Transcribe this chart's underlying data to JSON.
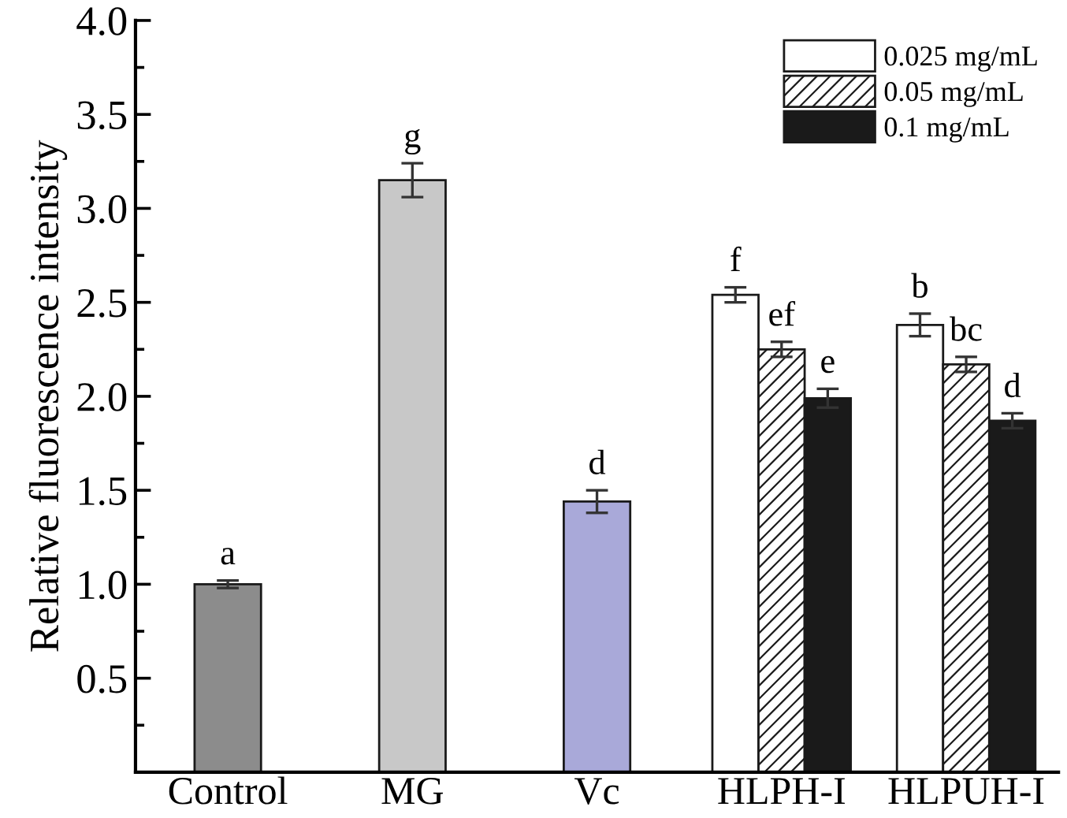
{
  "chart_data": {
    "type": "bar",
    "ylabel": "Relative fluorescence intensity",
    "categories": [
      "Control",
      "MG",
      "Vc",
      "HLPH-I",
      "HLPUH-I"
    ],
    "series": [
      {
        "colors": [
          "#8c8c8c",
          "#c8c8c8",
          "#a9a9d9",
          null,
          null
        ],
        "values": [
          1.0,
          3.15,
          1.44,
          null,
          null
        ],
        "errors": [
          0.02,
          0.09,
          0.06,
          null,
          null
        ],
        "value_labels": [
          "a",
          "g",
          "d",
          null,
          null
        ]
      },
      {
        "name": "0.025 mg/mL",
        "color": "#ffffff",
        "values": [
          null,
          null,
          null,
          2.54,
          2.38
        ],
        "errors": [
          null,
          null,
          null,
          0.04,
          0.06
        ],
        "value_labels": [
          null,
          null,
          null,
          "f",
          "b"
        ]
      },
      {
        "name": "0.05 mg/mL",
        "color": "#1a1a1a",
        "values": [
          null,
          null,
          null,
          2.25,
          2.17
        ],
        "errors": [
          null,
          null,
          null,
          0.04,
          0.04
        ],
        "value_labels": [
          null,
          null,
          null,
          "ef",
          "bc"
        ]
      },
      {
        "name": "0.1 mg/mL",
        "color": "#1a1a1a",
        "values": [
          null,
          null,
          null,
          1.99,
          1.87
        ],
        "errors": [
          null,
          null,
          null,
          0.05,
          0.04
        ],
        "value_labels": [
          null,
          null,
          null,
          "e",
          "d"
        ]
      }
    ],
    "ylim": [
      0,
      4.0
    ],
    "yticks": [
      0.5,
      {
        "value": 1,
        "label": "1.0"
      },
      1.5,
      {
        "value": 2,
        "label": "2.0"
      },
      2.5,
      {
        "value": 3,
        "label": "3.0"
      },
      3.5,
      {
        "value": 4,
        "label": "4.0"
      }
    ],
    "legend": "top right",
    "grid": false
  }
}
